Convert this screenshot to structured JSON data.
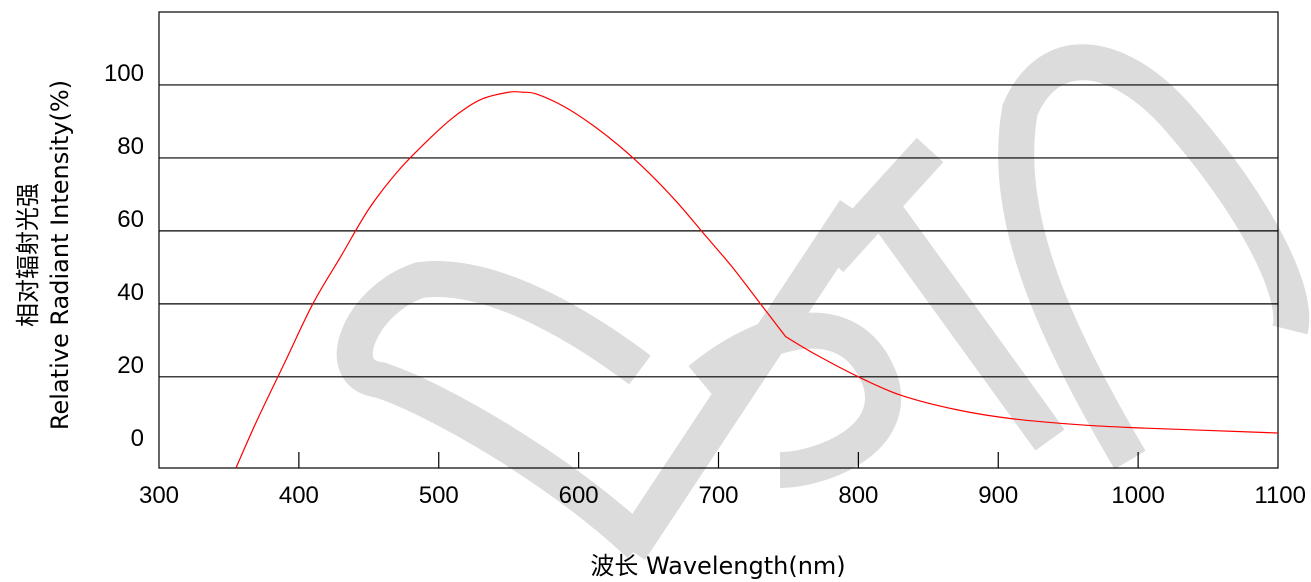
{
  "chart_data": {
    "type": "line",
    "title": "",
    "xlabel": "波长  Wavelength(nm)",
    "ylabel": "Relative  Radiant Intensity(%)",
    "ylabel_cn": "相对辐射光强",
    "xlim": [
      300,
      1100
    ],
    "ylim": [
      -5,
      120
    ],
    "xticks": [
      300,
      400,
      500,
      600,
      700,
      800,
      900,
      1000,
      1100
    ],
    "yticks": [
      0,
      20,
      40,
      60,
      80,
      100
    ],
    "grid": "horizontal",
    "legend": "none",
    "series": [
      {
        "color": "#ff0000",
        "x": [
          355,
          370,
          390,
          410,
          430,
          450,
          470,
          490,
          510,
          530,
          550,
          560,
          570,
          590,
          610,
          630,
          650,
          670,
          690,
          710,
          730,
          748,
          770,
          800,
          830,
          870,
          910,
          960,
          1000,
          1050,
          1100
        ],
        "y": [
          -5,
          8,
          24,
          40,
          53,
          66,
          76,
          84,
          91,
          96,
          98,
          98,
          97.5,
          94,
          89,
          83,
          76,
          68,
          59,
          50,
          40,
          31,
          26,
          20,
          15,
          11,
          8.5,
          6.8,
          6,
          5.3,
          4.6
        ]
      }
    ],
    "watermark": "OPTO",
    "watermark_color": "#dcdcdc"
  }
}
